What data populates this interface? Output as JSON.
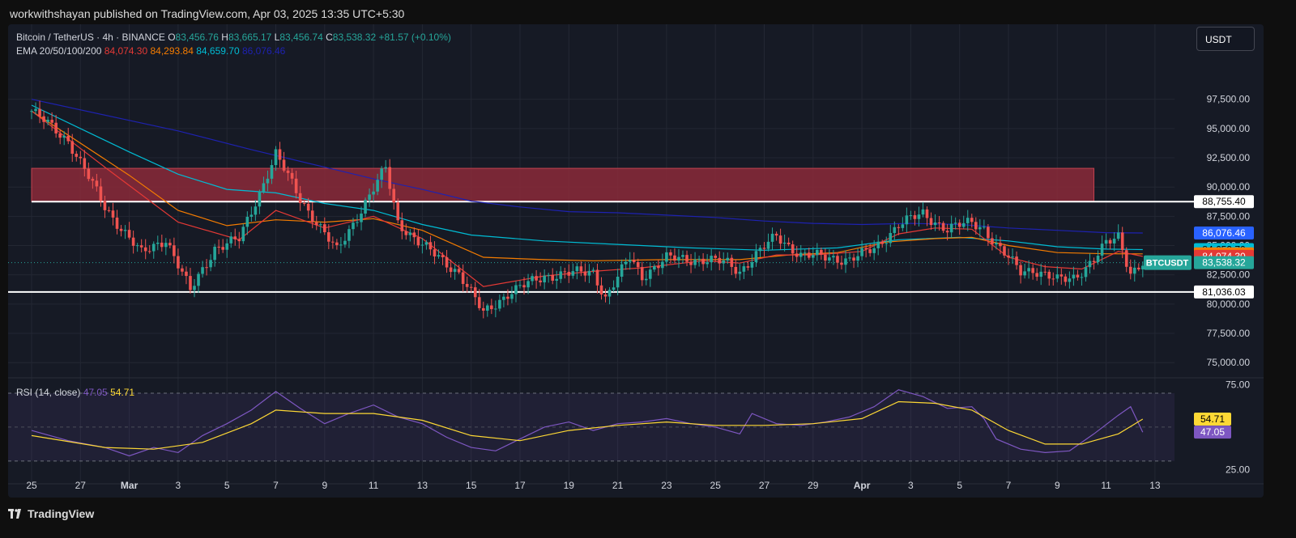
{
  "header": {
    "published_text": "workwithshayan published on TradingView.com, Apr 03, 2025 13:35 UTC+5:30"
  },
  "legend": {
    "symbol": "Bitcoin / TetherUS · 4h · BINANCE",
    "o_label": "O",
    "o_value": "83,456.76",
    "h_label": "H",
    "h_value": "83,665.17",
    "l_label": "L",
    "l_value": "83,456.74",
    "c_label": "C",
    "c_value": "83,538.32",
    "change": "+81.57 (+0.10%)",
    "ema_label": "EMA 20/50/100/200",
    "ema20": "84,074.30",
    "ema50": "84,293.84",
    "ema100": "84,659.70",
    "ema200": "86,076.46",
    "rsi_label": "RSI (14, close)",
    "rsi_value": "47.05",
    "rsi_ma_value": "54.71"
  },
  "currency_button": "USDT",
  "footer": {
    "brand": "TradingView"
  },
  "colors": {
    "up": "#26a69a",
    "down": "#ef5350",
    "ema20": "#e53935",
    "ema50": "#f57c00",
    "ema100": "#00bcd4",
    "ema200": "#1e22b0",
    "rsi": "#7e57c2",
    "rsi_ma": "#fdd835",
    "zone": "#8b2a3a",
    "level_line": "#ffffff"
  },
  "chart_data": [
    {
      "type": "candlestick",
      "symbol": "BTCUSDT",
      "timeframe": "4h",
      "ylim": [
        73700,
        99900
      ],
      "y_ticks": [
        "75,000.00",
        "77,500.00",
        "80,000.00",
        "82,500.00",
        "85,000.00",
        "87,500.00",
        "90,000.00",
        "92,500.00",
        "95,000.00",
        "97,500.00"
      ],
      "x_ticks": [
        "25",
        "27",
        "Mar",
        "3",
        "5",
        "7",
        "9",
        "11",
        "13",
        "15",
        "17",
        "19",
        "21",
        "23",
        "25",
        "27",
        "29",
        "Apr",
        "3",
        "5",
        "7",
        "9",
        "11",
        "13"
      ],
      "price_path": [
        [
          0,
          96500
        ],
        [
          1.5,
          94000
        ],
        [
          3,
          88300
        ],
        [
          4.5,
          84300
        ],
        [
          5.5,
          85600
        ],
        [
          6.5,
          81100
        ],
        [
          7.5,
          84800
        ],
        [
          8.5,
          85500
        ],
        [
          10,
          92800
        ],
        [
          11,
          89000
        ],
        [
          12.5,
          84500
        ],
        [
          13.5,
          88100
        ],
        [
          14.5,
          91600
        ],
        [
          15,
          87000
        ],
        [
          16,
          85000
        ],
        [
          17.5,
          82700
        ],
        [
          18.5,
          79200
        ],
        [
          19.5,
          80900
        ],
        [
          21,
          82400
        ],
        [
          23,
          82800
        ],
        [
          23.5,
          80500
        ],
        [
          24.5,
          84000
        ],
        [
          25,
          82400
        ],
        [
          26,
          83900
        ],
        [
          27.5,
          83800
        ],
        [
          28.5,
          83500
        ],
        [
          29,
          82800
        ],
        [
          29.5,
          83900
        ],
        [
          30.5,
          85800
        ],
        [
          31.5,
          84200
        ],
        [
          32.5,
          84000
        ],
        [
          33.5,
          83800
        ],
        [
          34.5,
          84700
        ],
        [
          35.5,
          86800
        ],
        [
          36.5,
          87700
        ],
        [
          37.5,
          86400
        ],
        [
          38.5,
          87000
        ],
        [
          39,
          86500
        ],
        [
          39.5,
          85000
        ],
        [
          40.5,
          82800
        ],
        [
          41,
          83000
        ],
        [
          42,
          82000
        ],
        [
          42.7,
          82300
        ],
        [
          43.5,
          83800
        ],
        [
          44,
          85100
        ],
        [
          44.5,
          85800
        ],
        [
          45,
          82700
        ],
        [
          45.5,
          83500
        ]
      ],
      "ema20_path": [
        [
          0,
          96500
        ],
        [
          3,
          91700
        ],
        [
          6,
          87000
        ],
        [
          8.5,
          85500
        ],
        [
          10,
          88000
        ],
        [
          12,
          86500
        ],
        [
          14,
          87500
        ],
        [
          16,
          85600
        ],
        [
          18.5,
          81500
        ],
        [
          21,
          82400
        ],
        [
          23,
          82800
        ],
        [
          25,
          83100
        ],
        [
          27.5,
          83700
        ],
        [
          29,
          83500
        ],
        [
          30.5,
          84200
        ],
        [
          32,
          84200
        ],
        [
          34,
          84500
        ],
        [
          35.5,
          86000
        ],
        [
          37,
          86500
        ],
        [
          38.5,
          86400
        ],
        [
          40,
          84000
        ],
        [
          41.5,
          83200
        ],
        [
          43,
          83000
        ],
        [
          44.5,
          84500
        ],
        [
          45.5,
          84074
        ]
      ],
      "ema50_path": [
        [
          0,
          96500
        ],
        [
          4,
          91000
        ],
        [
          6,
          88000
        ],
        [
          8,
          86700
        ],
        [
          10,
          87200
        ],
        [
          12,
          87000
        ],
        [
          14,
          87300
        ],
        [
          16,
          86300
        ],
        [
          18.5,
          84000
        ],
        [
          21,
          83800
        ],
        [
          23,
          83700
        ],
        [
          26,
          83800
        ],
        [
          29,
          83800
        ],
        [
          31,
          84200
        ],
        [
          33,
          84400
        ],
        [
          35,
          85300
        ],
        [
          37,
          85600
        ],
        [
          38.5,
          85700
        ],
        [
          40,
          85000
        ],
        [
          42,
          84400
        ],
        [
          44,
          84300
        ],
        [
          45.5,
          84293
        ]
      ],
      "ema100_path": [
        [
          0,
          97000
        ],
        [
          4,
          93000
        ],
        [
          6,
          91100
        ],
        [
          8,
          89800
        ],
        [
          10,
          89500
        ],
        [
          12,
          88600
        ],
        [
          14,
          88000
        ],
        [
          16,
          86800
        ],
        [
          18,
          85900
        ],
        [
          21,
          85400
        ],
        [
          24,
          85100
        ],
        [
          27,
          84800
        ],
        [
          30,
          84600
        ],
        [
          33,
          84800
        ],
        [
          35.5,
          85500
        ],
        [
          38,
          85700
        ],
        [
          40,
          85400
        ],
        [
          42,
          84900
        ],
        [
          44,
          84700
        ],
        [
          45.5,
          84660
        ]
      ],
      "ema200_path": [
        [
          0,
          97500
        ],
        [
          4,
          95700
        ],
        [
          6,
          94800
        ],
        [
          9,
          93200
        ],
        [
          12,
          91700
        ],
        [
          14,
          90700
        ],
        [
          16,
          89800
        ],
        [
          18,
          88800
        ],
        [
          20,
          88300
        ],
        [
          22,
          87900
        ],
        [
          24,
          87800
        ],
        [
          26,
          87600
        ],
        [
          28,
          87400
        ],
        [
          30,
          87100
        ],
        [
          32,
          86900
        ],
        [
          34,
          86800
        ],
        [
          36,
          86900
        ],
        [
          38,
          86800
        ],
        [
          40,
          86500
        ],
        [
          42,
          86300
        ],
        [
          44,
          86100
        ],
        [
          45.5,
          86076
        ]
      ],
      "resistance_zone": {
        "y_low": 88755.4,
        "y_high": 91600,
        "x_start": 0,
        "x_end": 43.5
      },
      "resistance_level": 88755.4,
      "support_level": 81036.03,
      "price_labels": [
        {
          "text": "88,755.40",
          "value": 88755.4,
          "bg": "#ffffff",
          "fg": "#000000"
        },
        {
          "text": "86,076.46",
          "value": 86076.46,
          "bg": "#2962ff",
          "fg": "#ffffff"
        },
        {
          "text": "84,659.70",
          "value": 84659.7,
          "bg": "#00bcd4",
          "fg": "#000000"
        },
        {
          "text": "84,293.84",
          "value": 84293.84,
          "bg": "#f57c00",
          "fg": "#ffffff"
        },
        {
          "text": "84,074.30",
          "value": 84074.3,
          "bg": "#e53935",
          "fg": "#ffffff"
        },
        {
          "text": "83,538.32",
          "value": 83538.32,
          "bg": "#26a69a",
          "fg": "#ffffff"
        },
        {
          "text": "81,036.03",
          "value": 81036.03,
          "bg": "#ffffff",
          "fg": "#000000"
        }
      ],
      "symbol_badge": "BTCUSDT"
    },
    {
      "type": "line",
      "name": "RSI (14, close)",
      "ylim": [
        18,
        80
      ],
      "y_ticks": [
        "25.00",
        "75.00"
      ],
      "bands": [
        30,
        70
      ],
      "rsi_path": [
        [
          0,
          48
        ],
        [
          1.5,
          42
        ],
        [
          3,
          38
        ],
        [
          4,
          33
        ],
        [
          5,
          38
        ],
        [
          6,
          35
        ],
        [
          7,
          45
        ],
        [
          8,
          52
        ],
        [
          9,
          60
        ],
        [
          10,
          71
        ],
        [
          11,
          61
        ],
        [
          12,
          52
        ],
        [
          13,
          58
        ],
        [
          14,
          63
        ],
        [
          15,
          56
        ],
        [
          16,
          52
        ],
        [
          17,
          44
        ],
        [
          18,
          38
        ],
        [
          19,
          36
        ],
        [
          20,
          43
        ],
        [
          21,
          50
        ],
        [
          22,
          53
        ],
        [
          23,
          48
        ],
        [
          24,
          52
        ],
        [
          25,
          53
        ],
        [
          26,
          55
        ],
        [
          27,
          52
        ],
        [
          28,
          50
        ],
        [
          29,
          46
        ],
        [
          29.5,
          58
        ],
        [
          30.5,
          52
        ],
        [
          31.5,
          51
        ],
        [
          32.5,
          53
        ],
        [
          33.5,
          56
        ],
        [
          34.5,
          62
        ],
        [
          35.5,
          72
        ],
        [
          36.5,
          68
        ],
        [
          37.5,
          61
        ],
        [
          38.5,
          62
        ],
        [
          39,
          55
        ],
        [
          39.5,
          43
        ],
        [
          40.5,
          37
        ],
        [
          41.5,
          35
        ],
        [
          42.5,
          36
        ],
        [
          43.5,
          46
        ],
        [
          44.5,
          57
        ],
        [
          45,
          62
        ],
        [
          45.5,
          47
        ]
      ],
      "rsi_ma_path": [
        [
          0,
          45
        ],
        [
          3,
          38
        ],
        [
          5,
          37
        ],
        [
          7,
          41
        ],
        [
          9,
          52
        ],
        [
          10,
          60
        ],
        [
          12,
          58
        ],
        [
          14,
          58
        ],
        [
          16,
          54
        ],
        [
          18,
          45
        ],
        [
          20,
          42
        ],
        [
          22,
          48
        ],
        [
          24,
          51
        ],
        [
          26,
          53
        ],
        [
          28,
          51
        ],
        [
          30,
          51
        ],
        [
          32,
          52
        ],
        [
          34,
          55
        ],
        [
          35.5,
          65
        ],
        [
          37,
          64
        ],
        [
          38.5,
          60
        ],
        [
          40,
          48
        ],
        [
          41.5,
          40
        ],
        [
          43,
          40
        ],
        [
          44.5,
          46
        ],
        [
          45.5,
          54.71
        ]
      ],
      "labels": [
        {
          "text": "54.71",
          "value": 54.71,
          "bg": "#fdd835",
          "fg": "#000000"
        },
        {
          "text": "47.05",
          "value": 47.05,
          "bg": "#7e57c2",
          "fg": "#ffffff"
        }
      ]
    }
  ]
}
